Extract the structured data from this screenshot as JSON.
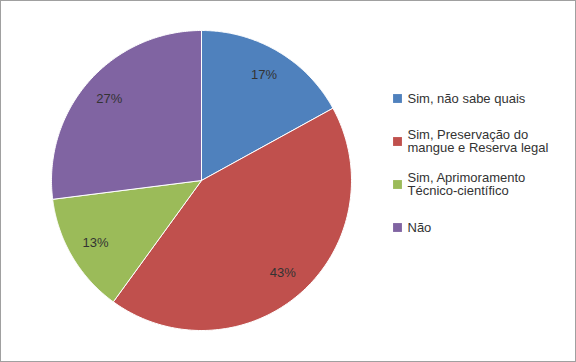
{
  "chart_data": {
    "type": "pie",
    "categories": [
      "Sim, não sabe quais",
      "Sim, Preservação do mangue e Reserva legal",
      "Sim, Aprimoramento Técnico-científico",
      "Não"
    ],
    "values": [
      17,
      43,
      13,
      27
    ],
    "value_labels": [
      "17%",
      "43%",
      "13%",
      "27%"
    ],
    "colors": [
      "#4f81bd",
      "#c0504d",
      "#9bbb59",
      "#8064a2"
    ],
    "data_labels": true,
    "legend": "right"
  }
}
